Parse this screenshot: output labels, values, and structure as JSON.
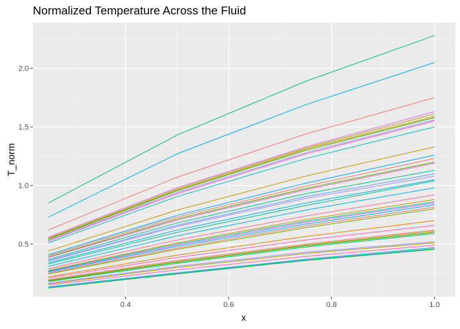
{
  "chart_data": {
    "type": "line",
    "title": "Normalized Temperature Across the Fluid",
    "xlabel": "x",
    "ylabel": "T_norm",
    "xlim": [
      0.22,
      1.04
    ],
    "ylim": [
      0.05,
      2.39
    ],
    "grid": true,
    "legend": "none",
    "x": [
      0.25,
      0.5,
      0.75,
      1.0
    ],
    "x_ticks": [
      "0.4",
      "0.6",
      "0.8",
      "1.0"
    ],
    "y_ticks": [
      "0.5",
      "1.0",
      "1.5",
      "2.0"
    ],
    "x_tick_values": [
      0.4,
      0.6,
      0.8,
      1.0
    ],
    "y_tick_values": [
      0.5,
      1.0,
      1.5,
      2.0
    ],
    "series": [
      {
        "color": "#00BF7D",
        "values": [
          0.85,
          1.43,
          1.89,
          2.28
        ]
      },
      {
        "color": "#00B0F6",
        "values": [
          0.73,
          1.27,
          1.69,
          2.05
        ]
      },
      {
        "color": "#F8766D",
        "values": [
          0.62,
          1.07,
          1.44,
          1.75
        ]
      },
      {
        "color": "#E76BF3",
        "values": [
          0.56,
          0.98,
          1.33,
          1.63
        ]
      },
      {
        "color": "#A3A500",
        "values": [
          0.55,
          0.97,
          1.32,
          1.61
        ]
      },
      {
        "color": "#D89000",
        "values": [
          0.545,
          0.96,
          1.31,
          1.59
        ]
      },
      {
        "color": "#39B600",
        "values": [
          0.54,
          0.955,
          1.3,
          1.58
        ]
      },
      {
        "color": "#9590FF",
        "values": [
          0.53,
          0.94,
          1.28,
          1.56
        ]
      },
      {
        "color": "#FF62BC",
        "values": [
          0.525,
          0.93,
          1.27,
          1.55
        ]
      },
      {
        "color": "#00BFC4",
        "values": [
          0.51,
          0.905,
          1.23,
          1.5
        ]
      },
      {
        "color": "#C49A00",
        "values": [
          0.44,
          0.79,
          1.08,
          1.33
        ]
      },
      {
        "color": "#00A9FF",
        "values": [
          0.41,
          0.745,
          1.02,
          1.26
        ]
      },
      {
        "color": "#F8766D",
        "values": [
          0.4,
          0.73,
          0.995,
          1.23
        ]
      },
      {
        "color": "#53B400",
        "values": [
          0.39,
          0.715,
          0.975,
          1.2
        ]
      },
      {
        "color": "#FB61D7",
        "values": [
          0.385,
          0.705,
          0.965,
          1.19
        ]
      },
      {
        "color": "#00C094",
        "values": [
          0.37,
          0.68,
          0.93,
          1.13
        ]
      },
      {
        "color": "#619CFF",
        "values": [
          0.36,
          0.66,
          0.905,
          1.1
        ]
      },
      {
        "color": "#A58AFF",
        "values": [
          0.355,
          0.65,
          0.89,
          1.08
        ]
      },
      {
        "color": "#00B6EB",
        "values": [
          0.34,
          0.62,
          0.85,
          1.05
        ]
      },
      {
        "color": "#00C094",
        "values": [
          0.33,
          0.6,
          0.83,
          1.04
        ]
      },
      {
        "color": "#00B6EB",
        "values": [
          0.31,
          0.57,
          0.79,
          0.98
        ]
      },
      {
        "color": "#FF6C91",
        "values": [
          0.29,
          0.535,
          0.74,
          0.92
        ]
      },
      {
        "color": "#C99800",
        "values": [
          0.275,
          0.51,
          0.71,
          0.88
        ]
      },
      {
        "color": "#00C1A3",
        "values": [
          0.27,
          0.5,
          0.695,
          0.86
        ]
      },
      {
        "color": "#E76BF3",
        "values": [
          0.265,
          0.49,
          0.685,
          0.85
        ]
      },
      {
        "color": "#00B0F6",
        "values": [
          0.26,
          0.48,
          0.67,
          0.835
        ]
      },
      {
        "color": "#F8766D",
        "values": [
          0.25,
          0.465,
          0.655,
          0.815
        ]
      },
      {
        "color": "#7CAE00",
        "values": [
          0.245,
          0.455,
          0.64,
          0.8
        ]
      },
      {
        "color": "#E58700",
        "values": [
          0.22,
          0.405,
          0.565,
          0.7
        ]
      },
      {
        "color": "#FF62BC",
        "values": [
          0.21,
          0.385,
          0.535,
          0.66
        ]
      },
      {
        "color": "#F8766D",
        "values": [
          0.195,
          0.36,
          0.5,
          0.62
        ]
      },
      {
        "color": "#A3A500",
        "values": [
          0.19,
          0.35,
          0.49,
          0.61
        ]
      },
      {
        "color": "#39B600",
        "values": [
          0.185,
          0.345,
          0.485,
          0.6
        ]
      },
      {
        "color": "#00BF7D",
        "values": [
          0.18,
          0.335,
          0.475,
          0.59
        ]
      },
      {
        "color": "#9590FF",
        "values": [
          0.165,
          0.31,
          0.43,
          0.52
        ]
      },
      {
        "color": "#B79F00",
        "values": [
          0.16,
          0.3,
          0.42,
          0.51
        ]
      },
      {
        "color": "#FF62BC",
        "values": [
          0.15,
          0.28,
          0.395,
          0.49
        ]
      },
      {
        "color": "#00BFC4",
        "values": [
          0.135,
          0.255,
          0.37,
          0.47
        ]
      },
      {
        "color": "#619CFF",
        "values": [
          0.13,
          0.25,
          0.365,
          0.46
        ]
      },
      {
        "color": "#00BA38",
        "values": [
          0.125,
          0.245,
          0.36,
          0.455
        ]
      }
    ]
  }
}
